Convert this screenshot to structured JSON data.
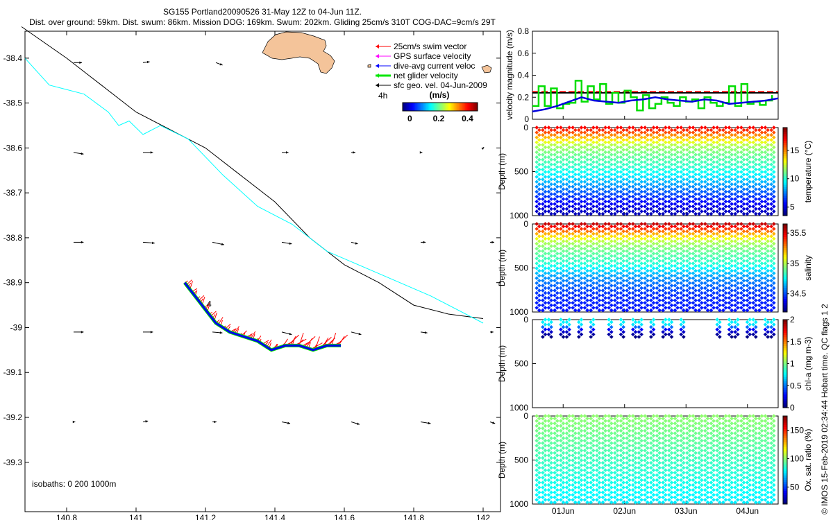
{
  "figure": {
    "title_line1": "SG155 Portland20090526 31-May 12Z to 04-Jun 11Z.",
    "title_line2": "Dist. over ground: 59km. Dist. swum: 86km. Mission DOG: 169km. Swum: 202km. Gliding 25cm/s 310T COG-DAC=9cm/s 29T",
    "credit": "© IMOS 15-Feb-2019 02:34:44 Hobart time. QC flags 1  2"
  },
  "chart_data": [
    {
      "type": "map",
      "name": "glider-track-map",
      "xlim": [
        140.68,
        142.05
      ],
      "ylim": [
        -39.41,
        -38.34
      ],
      "xticks": [
        "140.8",
        "141",
        "141.2",
        "141.4",
        "141.6",
        "141.8",
        "142"
      ],
      "xtick_values": [
        140.8,
        141.0,
        141.2,
        141.4,
        141.6,
        141.8,
        142.0
      ],
      "yticks": [
        "-38.4",
        "-38.5",
        "-38.6",
        "-38.7",
        "-38.8",
        "-38.9",
        "-39",
        "-39.1",
        "-39.2",
        "-39.3"
      ],
      "ytick_values": [
        -38.4,
        -38.5,
        -38.6,
        -38.7,
        -38.8,
        -38.9,
        -39.0,
        -39.1,
        -39.2,
        -39.3
      ],
      "legend": [
        {
          "label": "25cm/s swim vector",
          "color": "#ff0000",
          "width": 1
        },
        {
          "label": "GPS surface velocity",
          "color": "#ff00ff",
          "width": 1
        },
        {
          "label": "dive-avg current veloc",
          "color": "#0000ff",
          "width": 1
        },
        {
          "label": "net glider velocity",
          "color": "#00e600",
          "width": 3
        },
        {
          "label": "sfc geo. vel. 04-Jun-2009",
          "color": "#000000",
          "width": 1
        }
      ],
      "time_label": "4h",
      "colorbar_title": "(m/s)",
      "colorbar_ticks": [
        "0",
        "0.2",
        "0.4"
      ],
      "colorbar_tick_values": [
        0,
        0.2,
        0.4
      ],
      "colorbar_range": [
        -0.05,
        0.47
      ],
      "isobaths_label": "isobaths: 0   200  1000m",
      "track_marker": "4",
      "isobath_200": [
        [
          140.67,
          -38.33
        ],
        [
          140.8,
          -38.4
        ],
        [
          140.9,
          -38.46
        ],
        [
          141.0,
          -38.52
        ],
        [
          141.1,
          -38.56
        ],
        [
          141.2,
          -38.6
        ],
        [
          141.3,
          -38.66
        ],
        [
          141.4,
          -38.72
        ],
        [
          141.5,
          -38.8
        ],
        [
          141.6,
          -38.86
        ],
        [
          141.7,
          -38.9
        ],
        [
          141.8,
          -38.95
        ],
        [
          141.9,
          -38.97
        ],
        [
          142.0,
          -38.98
        ]
      ],
      "isobath_1000": [
        [
          140.68,
          -38.4
        ],
        [
          140.75,
          -38.46
        ],
        [
          140.85,
          -38.48
        ],
        [
          140.92,
          -38.52
        ],
        [
          140.95,
          -38.55
        ],
        [
          140.98,
          -38.54
        ],
        [
          141.02,
          -38.57
        ],
        [
          141.07,
          -38.55
        ],
        [
          141.15,
          -38.58
        ],
        [
          141.25,
          -38.66
        ],
        [
          141.35,
          -38.73
        ],
        [
          141.45,
          -38.77
        ],
        [
          141.55,
          -38.83
        ],
        [
          141.7,
          -38.88
        ],
        [
          141.85,
          -38.93
        ],
        [
          142.0,
          -38.99
        ]
      ],
      "track": [
        [
          141.14,
          -38.9
        ],
        [
          141.17,
          -38.93
        ],
        [
          141.2,
          -38.96
        ],
        [
          141.23,
          -38.99
        ],
        [
          141.27,
          -39.01
        ],
        [
          141.31,
          -39.02
        ],
        [
          141.35,
          -39.03
        ],
        [
          141.39,
          -39.05
        ],
        [
          141.43,
          -39.04
        ],
        [
          141.47,
          -39.04
        ],
        [
          141.51,
          -39.05
        ],
        [
          141.55,
          -39.04
        ],
        [
          141.59,
          -39.04
        ]
      ],
      "current_arrows": [
        {
          "lon": 140.82,
          "lat": -38.41,
          "u": 0.1,
          "v": 0.0
        },
        {
          "lon": 141.02,
          "lat": -38.41,
          "u": 0.08,
          "v": 0.01
        },
        {
          "lon": 141.23,
          "lat": -38.41,
          "u": 0.08,
          "v": -0.03
        },
        {
          "lon": 140.82,
          "lat": -38.61,
          "u": 0.12,
          "v": -0.02
        },
        {
          "lon": 141.02,
          "lat": -38.61,
          "u": 0.12,
          "v": 0.0
        },
        {
          "lon": 141.42,
          "lat": -38.61,
          "u": 0.08,
          "v": 0.0
        },
        {
          "lon": 141.62,
          "lat": -38.61,
          "u": 0.05,
          "v": 0.0
        },
        {
          "lon": 141.82,
          "lat": -38.61,
          "u": 0.02,
          "v": 0.0
        },
        {
          "lon": 142.0,
          "lat": -38.6,
          "u": 0.01,
          "v": 0.01
        },
        {
          "lon": 140.82,
          "lat": -38.81,
          "u": 0.12,
          "v": 0.0
        },
        {
          "lon": 141.02,
          "lat": -38.81,
          "u": 0.14,
          "v": -0.01
        },
        {
          "lon": 141.22,
          "lat": -38.81,
          "u": 0.14,
          "v": -0.03
        },
        {
          "lon": 141.42,
          "lat": -38.81,
          "u": 0.12,
          "v": -0.02
        },
        {
          "lon": 141.62,
          "lat": -38.81,
          "u": 0.08,
          "v": -0.02
        },
        {
          "lon": 141.82,
          "lat": -38.81,
          "u": 0.06,
          "v": 0.0
        },
        {
          "lon": 142.02,
          "lat": -38.81,
          "u": 0.05,
          "v": 0.0
        },
        {
          "lon": 140.82,
          "lat": -39.01,
          "u": 0.12,
          "v": 0.0
        },
        {
          "lon": 141.02,
          "lat": -39.01,
          "u": 0.12,
          "v": 0.0
        },
        {
          "lon": 141.22,
          "lat": -39.01,
          "u": 0.12,
          "v": -0.01
        },
        {
          "lon": 141.42,
          "lat": -39.01,
          "u": 0.12,
          "v": -0.03
        },
        {
          "lon": 141.62,
          "lat": -39.01,
          "u": 0.12,
          "v": -0.03
        },
        {
          "lon": 141.82,
          "lat": -39.01,
          "u": 0.08,
          "v": -0.01
        },
        {
          "lon": 142.02,
          "lat": -39.01,
          "u": 0.04,
          "v": 0.0
        },
        {
          "lon": 140.82,
          "lat": -39.21,
          "u": 0.02,
          "v": 0.0
        },
        {
          "lon": 141.02,
          "lat": -39.21,
          "u": 0.06,
          "v": 0.01
        },
        {
          "lon": 141.22,
          "lat": -39.21,
          "u": 0.05,
          "v": 0.0
        },
        {
          "lon": 141.42,
          "lat": -39.21,
          "u": 0.1,
          "v": -0.02
        },
        {
          "lon": 141.62,
          "lat": -39.21,
          "u": 0.1,
          "v": -0.03
        },
        {
          "lon": 141.82,
          "lat": -39.21,
          "u": 0.12,
          "v": -0.02
        },
        {
          "lon": 142.02,
          "lat": -39.21,
          "u": 0.06,
          "v": -0.02
        }
      ]
    },
    {
      "type": "line",
      "name": "velocity-panel",
      "ylabel": "velocity magnitude (m/s)",
      "ylim": [
        0,
        0.8
      ],
      "yticks": [
        "0",
        "0.2",
        "0.4",
        "0.6",
        "0.8"
      ],
      "ytick_values": [
        0,
        0.2,
        0.4,
        0.6,
        0.8
      ],
      "xlim": [
        0,
        4
      ],
      "reference_lines": [
        {
          "name": "25cm/s swim",
          "value": 0.25,
          "color": "#ff0000",
          "dash": true
        },
        {
          "name": "dive-avg mean",
          "value": 0.24,
          "color": "#000000",
          "dash": false
        }
      ],
      "series": [
        {
          "name": "net glider velocity",
          "color": "#00dd00",
          "x": [
            0.0,
            0.1,
            0.2,
            0.3,
            0.4,
            0.5,
            0.6,
            0.7,
            0.8,
            0.9,
            1.0,
            1.1,
            1.2,
            1.3,
            1.4,
            1.5,
            1.6,
            1.7,
            1.8,
            1.9,
            2.0,
            2.1,
            2.2,
            2.3,
            2.4,
            2.5,
            2.6,
            2.7,
            2.8,
            2.9,
            3.0,
            3.1,
            3.2,
            3.3,
            3.4,
            3.5,
            3.6,
            3.7,
            3.8,
            3.9
          ],
          "y": [
            0.12,
            0.3,
            0.12,
            0.28,
            0.1,
            0.14,
            0.15,
            0.35,
            0.16,
            0.3,
            0.18,
            0.32,
            0.14,
            0.24,
            0.15,
            0.26,
            0.2,
            0.08,
            0.22,
            0.1,
            0.14,
            0.2,
            0.15,
            0.12,
            0.2,
            0.16,
            0.18,
            0.1,
            0.2,
            0.15,
            0.12,
            0.15,
            0.3,
            0.12,
            0.32,
            0.14,
            0.16,
            0.13,
            0.17,
            0.22
          ]
        },
        {
          "name": "dive-avg current velocity",
          "color": "#0000dd",
          "x": [
            0.0,
            0.2,
            0.4,
            0.6,
            0.8,
            1.0,
            1.2,
            1.4,
            1.6,
            1.8,
            2.0,
            2.2,
            2.4,
            2.6,
            2.8,
            3.0,
            3.2,
            3.4,
            3.6,
            3.8,
            4.0
          ],
          "y": [
            0.07,
            0.09,
            0.12,
            0.16,
            0.2,
            0.17,
            0.16,
            0.15,
            0.17,
            0.18,
            0.2,
            0.18,
            0.17,
            0.16,
            0.18,
            0.17,
            0.14,
            0.15,
            0.16,
            0.17,
            0.19
          ]
        }
      ]
    },
    {
      "type": "scatter",
      "name": "temperature-panel",
      "ylabel": "Depth (m)",
      "ylim": [
        1000,
        0
      ],
      "yticks": [
        "0",
        "500",
        "1000"
      ],
      "ytick_values": [
        0,
        500,
        1000
      ],
      "colorbar_label": "temperature (°C)",
      "colorbar_ticks": [
        "5",
        "10",
        "15"
      ],
      "colorbar_tick_values": [
        5,
        10,
        15
      ],
      "crange": [
        3.5,
        19
      ],
      "profile": [
        [
          0,
          17
        ],
        [
          50,
          16
        ],
        [
          120,
          14
        ],
        [
          200,
          12
        ],
        [
          300,
          11
        ],
        [
          450,
          10
        ],
        [
          600,
          8.5
        ],
        [
          800,
          6
        ],
        [
          900,
          5
        ],
        [
          1000,
          4.2
        ]
      ],
      "max_depth": 1000,
      "dives": 40
    },
    {
      "type": "scatter",
      "name": "salinity-panel",
      "ylabel": "Depth (m)",
      "ylim": [
        1000,
        0
      ],
      "yticks": [
        "0",
        "500",
        "1000"
      ],
      "ytick_values": [
        0,
        500,
        1000
      ],
      "colorbar_label": "salinity",
      "colorbar_ticks": [
        "34.5",
        "35",
        "35.5"
      ],
      "colorbar_tick_values": [
        34.5,
        35,
        35.5
      ],
      "crange": [
        34.2,
        35.65
      ],
      "profile": [
        [
          0,
          35.55
        ],
        [
          40,
          35.45
        ],
        [
          100,
          35.25
        ],
        [
          200,
          35.0
        ],
        [
          300,
          34.9
        ],
        [
          450,
          34.8
        ],
        [
          600,
          34.6
        ],
        [
          800,
          34.45
        ],
        [
          1000,
          34.4
        ]
      ],
      "max_depth": 1000,
      "dives": 40
    },
    {
      "type": "scatter",
      "name": "chla-panel",
      "ylabel": "Depth (m)",
      "ylim": [
        1000,
        0
      ],
      "yticks": [
        "0",
        "500",
        "1000"
      ],
      "ytick_values": [
        0,
        500,
        1000
      ],
      "colorbar_label": "chl-a (mg m-3)",
      "colorbar_ticks": [
        "0",
        "0.5",
        "1",
        "1.5",
        "2"
      ],
      "colorbar_tick_values": [
        0,
        0.5,
        1,
        1.5,
        2
      ],
      "crange": [
        0,
        2
      ],
      "profile": [
        [
          0,
          0.75
        ],
        [
          60,
          0.7
        ],
        [
          100,
          0.3
        ],
        [
          150,
          0.1
        ],
        [
          200,
          0.0
        ]
      ],
      "max_depth": 200,
      "dives_shown": [
        1,
        2,
        4,
        5,
        7,
        9,
        12,
        14,
        16,
        17,
        19,
        21,
        22,
        24,
        30,
        32,
        33,
        35,
        36,
        38,
        39
      ]
    },
    {
      "type": "scatter",
      "name": "oxygen-panel",
      "ylabel": "Depth (m)",
      "ylim": [
        1000,
        0
      ],
      "yticks": [
        "0",
        "500",
        "1000"
      ],
      "ytick_values": [
        0,
        500,
        1000
      ],
      "colorbar_label": "Ox. sat. ratio (%)",
      "colorbar_ticks": [
        "50",
        "100",
        "150"
      ],
      "colorbar_tick_values": [
        50,
        100,
        150
      ],
      "crange": [
        20,
        175
      ],
      "profile": [
        [
          0,
          100
        ],
        [
          200,
          95
        ],
        [
          400,
          90
        ],
        [
          600,
          85
        ],
        [
          800,
          80
        ],
        [
          1000,
          75
        ]
      ],
      "max_depth": 1000,
      "dives": 40,
      "xticks": [
        "01Jun",
        "02Jun",
        "03Jun",
        "04Jun"
      ],
      "xtick_values": [
        0.5,
        1.5,
        2.5,
        3.5
      ]
    }
  ]
}
